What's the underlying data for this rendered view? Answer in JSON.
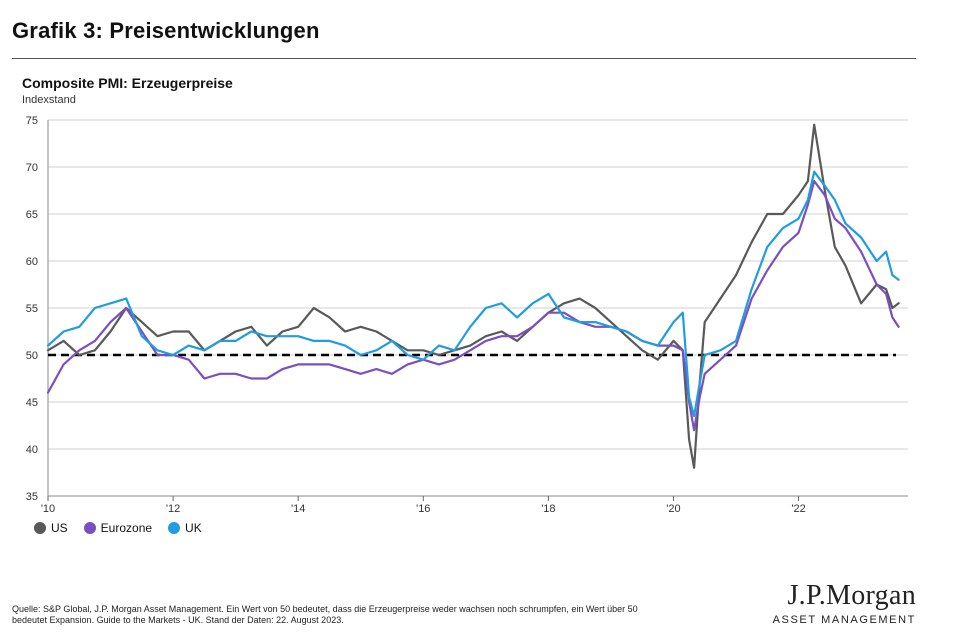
{
  "header": {
    "title": "Grafik 3: Preisentwicklungen"
  },
  "chart_title": "Composite PMI: Erzeugerpreise",
  "chart_data": {
    "type": "line",
    "title": "Composite PMI: Erzeugerpreise",
    "ylabel": "Indexstand",
    "ylim": [
      35,
      75
    ],
    "yticks": [
      35,
      40,
      45,
      50,
      55,
      60,
      65,
      70,
      75
    ],
    "xlim": [
      2010.0,
      2023.75
    ],
    "xticks": [
      {
        "value": 2010,
        "label": "'10"
      },
      {
        "value": 2012,
        "label": "'12"
      },
      {
        "value": 2014,
        "label": "'14"
      },
      {
        "value": 2016,
        "label": "'16"
      },
      {
        "value": 2018,
        "label": "'18"
      },
      {
        "value": 2020,
        "label": "'20"
      },
      {
        "value": 2022,
        "label": "'22"
      }
    ],
    "reference_line": {
      "value": 50,
      "style": "dashed",
      "color": "#000000"
    },
    "grid": true,
    "series": [
      {
        "name": "US",
        "color": "#595959",
        "points": [
          [
            2010.0,
            50.5
          ],
          [
            2010.25,
            51.5
          ],
          [
            2010.5,
            50.0
          ],
          [
            2010.75,
            50.5
          ],
          [
            2011.0,
            52.5
          ],
          [
            2011.25,
            55.0
          ],
          [
            2011.5,
            53.5
          ],
          [
            2011.75,
            52.0
          ],
          [
            2012.0,
            52.5
          ],
          [
            2012.25,
            52.5
          ],
          [
            2012.5,
            50.5
          ],
          [
            2012.75,
            51.5
          ],
          [
            2013.0,
            52.5
          ],
          [
            2013.25,
            53.0
          ],
          [
            2013.5,
            51.0
          ],
          [
            2013.75,
            52.5
          ],
          [
            2014.0,
            53.0
          ],
          [
            2014.25,
            55.0
          ],
          [
            2014.5,
            54.0
          ],
          [
            2014.75,
            52.5
          ],
          [
            2015.0,
            53.0
          ],
          [
            2015.25,
            52.5
          ],
          [
            2015.5,
            51.5
          ],
          [
            2015.75,
            50.5
          ],
          [
            2016.0,
            50.5
          ],
          [
            2016.25,
            50.0
          ],
          [
            2016.5,
            50.5
          ],
          [
            2016.75,
            51.0
          ],
          [
            2017.0,
            52.0
          ],
          [
            2017.25,
            52.5
          ],
          [
            2017.5,
            51.5
          ],
          [
            2017.75,
            53.0
          ],
          [
            2018.0,
            54.5
          ],
          [
            2018.25,
            55.5
          ],
          [
            2018.5,
            56.0
          ],
          [
            2018.75,
            55.0
          ],
          [
            2019.0,
            53.5
          ],
          [
            2019.25,
            52.0
          ],
          [
            2019.5,
            50.5
          ],
          [
            2019.75,
            49.5
          ],
          [
            2020.0,
            51.5
          ],
          [
            2020.15,
            50.5
          ],
          [
            2020.25,
            41.0
          ],
          [
            2020.33,
            38.0
          ],
          [
            2020.42,
            47.0
          ],
          [
            2020.5,
            53.5
          ],
          [
            2020.75,
            56.0
          ],
          [
            2021.0,
            58.5
          ],
          [
            2021.25,
            62.0
          ],
          [
            2021.5,
            65.0
          ],
          [
            2021.75,
            65.0
          ],
          [
            2022.0,
            67.0
          ],
          [
            2022.15,
            68.5
          ],
          [
            2022.25,
            74.5
          ],
          [
            2022.42,
            67.5
          ],
          [
            2022.58,
            61.5
          ],
          [
            2022.75,
            59.5
          ],
          [
            2023.0,
            55.5
          ],
          [
            2023.25,
            57.5
          ],
          [
            2023.4,
            57.0
          ],
          [
            2023.5,
            55.0
          ],
          [
            2023.6,
            55.5
          ]
        ]
      },
      {
        "name": "Eurozone",
        "color": "#7a4fc1",
        "points": [
          [
            2010.0,
            46.0
          ],
          [
            2010.25,
            49.0
          ],
          [
            2010.5,
            50.5
          ],
          [
            2010.75,
            51.5
          ],
          [
            2011.0,
            53.5
          ],
          [
            2011.25,
            55.0
          ],
          [
            2011.5,
            52.5
          ],
          [
            2011.75,
            50.0
          ],
          [
            2012.0,
            50.0
          ],
          [
            2012.25,
            49.5
          ],
          [
            2012.5,
            47.5
          ],
          [
            2012.75,
            48.0
          ],
          [
            2013.0,
            48.0
          ],
          [
            2013.25,
            47.5
          ],
          [
            2013.5,
            47.5
          ],
          [
            2013.75,
            48.5
          ],
          [
            2014.0,
            49.0
          ],
          [
            2014.25,
            49.0
          ],
          [
            2014.5,
            49.0
          ],
          [
            2014.75,
            48.5
          ],
          [
            2015.0,
            48.0
          ],
          [
            2015.25,
            48.5
          ],
          [
            2015.5,
            48.0
          ],
          [
            2015.75,
            49.0
          ],
          [
            2016.0,
            49.5
          ],
          [
            2016.25,
            49.0
          ],
          [
            2016.5,
            49.5
          ],
          [
            2016.75,
            50.5
          ],
          [
            2017.0,
            51.5
          ],
          [
            2017.25,
            52.0
          ],
          [
            2017.5,
            52.0
          ],
          [
            2017.75,
            53.0
          ],
          [
            2018.0,
            54.5
          ],
          [
            2018.25,
            54.5
          ],
          [
            2018.5,
            53.5
          ],
          [
            2018.75,
            53.0
          ],
          [
            2019.0,
            53.0
          ],
          [
            2019.25,
            52.5
          ],
          [
            2019.5,
            51.5
          ],
          [
            2019.75,
            51.0
          ],
          [
            2020.0,
            51.0
          ],
          [
            2020.15,
            50.5
          ],
          [
            2020.25,
            45.0
          ],
          [
            2020.33,
            42.0
          ],
          [
            2020.42,
            45.5
          ],
          [
            2020.5,
            48.0
          ],
          [
            2020.75,
            49.5
          ],
          [
            2021.0,
            51.0
          ],
          [
            2021.25,
            56.0
          ],
          [
            2021.5,
            59.0
          ],
          [
            2021.75,
            61.5
          ],
          [
            2022.0,
            63.0
          ],
          [
            2022.15,
            66.0
          ],
          [
            2022.25,
            68.5
          ],
          [
            2022.42,
            67.0
          ],
          [
            2022.58,
            64.5
          ],
          [
            2022.75,
            63.5
          ],
          [
            2023.0,
            61.0
          ],
          [
            2023.25,
            57.5
          ],
          [
            2023.4,
            56.5
          ],
          [
            2023.5,
            54.0
          ],
          [
            2023.6,
            53.0
          ]
        ]
      },
      {
        "name": "UK",
        "color": "#1f9de0",
        "points": [
          [
            2010.0,
            51.0
          ],
          [
            2010.25,
            52.5
          ],
          [
            2010.5,
            53.0
          ],
          [
            2010.75,
            55.0
          ],
          [
            2011.0,
            55.5
          ],
          [
            2011.25,
            56.0
          ],
          [
            2011.5,
            52.0
          ],
          [
            2011.75,
            50.5
          ],
          [
            2012.0,
            50.0
          ],
          [
            2012.25,
            51.0
          ],
          [
            2012.5,
            50.5
          ],
          [
            2012.75,
            51.5
          ],
          [
            2013.0,
            51.5
          ],
          [
            2013.25,
            52.5
          ],
          [
            2013.5,
            52.0
          ],
          [
            2013.75,
            52.0
          ],
          [
            2014.0,
            52.0
          ],
          [
            2014.25,
            51.5
          ],
          [
            2014.5,
            51.5
          ],
          [
            2014.75,
            51.0
          ],
          [
            2015.0,
            50.0
          ],
          [
            2015.25,
            50.5
          ],
          [
            2015.5,
            51.5
          ],
          [
            2015.75,
            50.0
          ],
          [
            2016.0,
            49.5
          ],
          [
            2016.25,
            51.0
          ],
          [
            2016.5,
            50.5
          ],
          [
            2016.75,
            53.0
          ],
          [
            2017.0,
            55.0
          ],
          [
            2017.25,
            55.5
          ],
          [
            2017.5,
            54.0
          ],
          [
            2017.75,
            55.5
          ],
          [
            2018.0,
            56.5
          ],
          [
            2018.25,
            54.0
          ],
          [
            2018.5,
            53.5
          ],
          [
            2018.75,
            53.5
          ],
          [
            2019.0,
            53.0
          ],
          [
            2019.25,
            52.5
          ],
          [
            2019.5,
            51.5
          ],
          [
            2019.75,
            51.0
          ],
          [
            2020.0,
            53.5
          ],
          [
            2020.15,
            54.5
          ],
          [
            2020.25,
            45.5
          ],
          [
            2020.33,
            43.5
          ],
          [
            2020.42,
            47.0
          ],
          [
            2020.5,
            50.0
          ],
          [
            2020.75,
            50.5
          ],
          [
            2021.0,
            51.5
          ],
          [
            2021.25,
            57.0
          ],
          [
            2021.5,
            61.5
          ],
          [
            2021.75,
            63.5
          ],
          [
            2022.0,
            64.5
          ],
          [
            2022.15,
            66.5
          ],
          [
            2022.25,
            69.5
          ],
          [
            2022.42,
            68.0
          ],
          [
            2022.58,
            66.5
          ],
          [
            2022.75,
            64.0
          ],
          [
            2023.0,
            62.5
          ],
          [
            2023.25,
            60.0
          ],
          [
            2023.4,
            61.0
          ],
          [
            2023.5,
            58.5
          ],
          [
            2023.6,
            58.0
          ]
        ]
      }
    ],
    "legend": [
      "US",
      "Eurozone",
      "UK"
    ],
    "legend_position": "bottom-left"
  },
  "source_note": {
    "line1": "Quelle: S&P Global, J.P. Morgan Asset Management. Ein Wert von 50 bedeutet, dass die Erzeugerpreise weder wachsen noch schrumpfen, ein Wert über 50",
    "line2": "bedeutet Expansion. Guide to the Markets - UK. Stand der Daten: 22. August 2023."
  },
  "logo": {
    "name": "J.P.Morgan",
    "subtitle": "ASSET MANAGEMENT"
  }
}
